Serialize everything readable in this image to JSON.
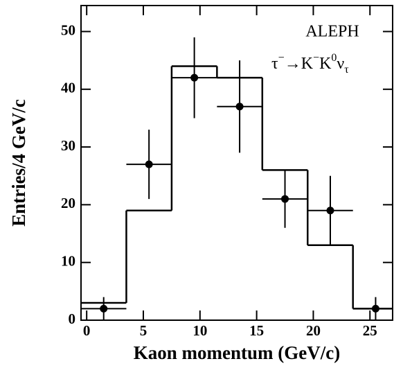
{
  "chart_data": {
    "type": "histogram",
    "xlabel": "Kaon momentum (GeV/c)",
    "ylabel": "Entries/4 GeV/c",
    "annotation": "ALEPH",
    "decay": [
      {
        "text": "τ"
      },
      {
        "sup": "−"
      },
      {
        "text": "→K"
      },
      {
        "sup": "−"
      },
      {
        "text": "K"
      },
      {
        "sup": "0"
      },
      {
        "text": "ν"
      },
      {
        "sub": "τ"
      }
    ],
    "bins": [
      -0.5,
      3.5,
      7.5,
      11.5,
      15.5,
      19.5,
      23.5,
      27.5
    ],
    "values": [
      3,
      19,
      44,
      42,
      26,
      13,
      2
    ],
    "points": {
      "x": [
        1.5,
        5.5,
        9.5,
        13.5,
        17.5,
        21.5,
        25.5
      ],
      "values": [
        2,
        27,
        42,
        37,
        21,
        19,
        2
      ],
      "errors": [
        2,
        6,
        7,
        8,
        5,
        6,
        2
      ]
    },
    "color": "#000000",
    "xlim": [
      -0.5,
      27
    ],
    "ylim": [
      0,
      54.5
    ],
    "xticks": [
      0,
      5,
      10,
      15,
      20,
      25
    ],
    "yticks": [
      0,
      10,
      20,
      30,
      40,
      50
    ]
  }
}
